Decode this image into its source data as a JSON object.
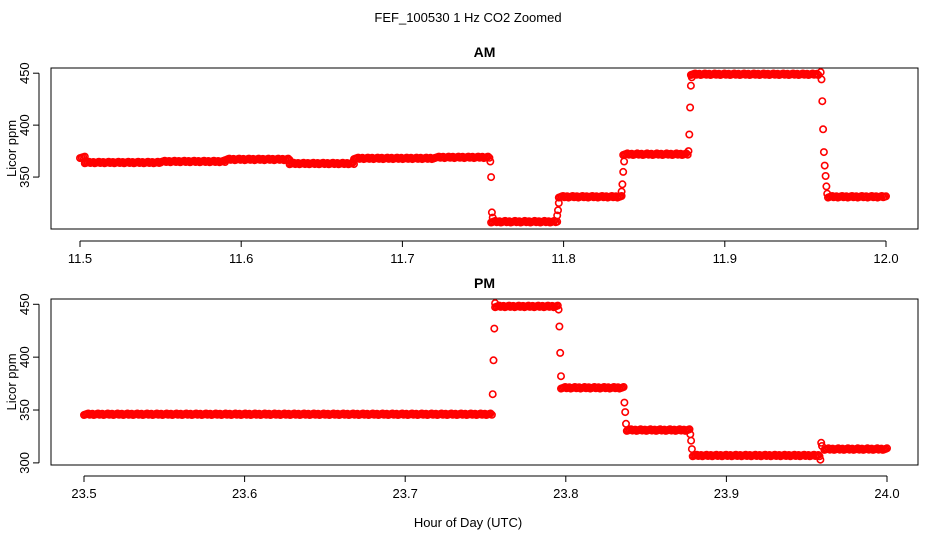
{
  "figure": {
    "title": "FEF_100530  1 Hz CO2 Zoomed",
    "xlabel": "Hour of Day (UTC)",
    "point_color": "#ff0000",
    "marker": "open-circle"
  },
  "chart_data": [
    {
      "type": "scatter",
      "title": "AM",
      "xlabel": "",
      "ylabel": "Licor ppm",
      "xlim": [
        11.5,
        12.0
      ],
      "ylim": [
        300,
        455
      ],
      "xticks": [
        11.5,
        11.6,
        11.7,
        11.8,
        11.9,
        12.0
      ],
      "xtick_labels": [
        "11.5",
        "11.6",
        "11.7",
        "11.8",
        "11.9",
        "12.0"
      ],
      "yticks": [
        350,
        400,
        450
      ],
      "ytick_labels": [
        "350",
        "400",
        "450"
      ],
      "grid": false,
      "segments": [
        {
          "x": [
            11.5,
            11.503
          ],
          "y": [
            369,
            369
          ]
        },
        {
          "x": [
            11.503,
            11.55
          ],
          "y": [
            364,
            364
          ]
        },
        {
          "x": [
            11.55,
            11.59
          ],
          "y": [
            365,
            365
          ]
        },
        {
          "x": [
            11.59,
            11.63
          ],
          "y": [
            367,
            367
          ]
        },
        {
          "x": [
            11.63,
            11.67
          ],
          "y": [
            363,
            363
          ]
        },
        {
          "x": [
            11.67,
            11.72
          ],
          "y": [
            368,
            368
          ]
        },
        {
          "x": [
            11.72,
            11.754
          ],
          "y": [
            369,
            369
          ]
        },
        {
          "x": [
            11.755,
            11.796
          ],
          "y": [
            307,
            307
          ]
        },
        {
          "x": [
            11.797,
            11.836
          ],
          "y": [
            331,
            331
          ]
        },
        {
          "x": [
            11.837,
            11.877
          ],
          "y": [
            372,
            372
          ]
        },
        {
          "x": [
            11.879,
            11.958
          ],
          "y": [
            449,
            449
          ]
        },
        {
          "x": [
            11.964,
            12.0
          ],
          "y": [
            331,
            331
          ]
        }
      ],
      "transitions": [
        {
          "x": 11.7545,
          "y": 365
        },
        {
          "x": 11.755,
          "y": 350
        },
        {
          "x": 11.7555,
          "y": 316
        },
        {
          "x": 11.756,
          "y": 311
        },
        {
          "x": 11.796,
          "y": 313
        },
        {
          "x": 11.7965,
          "y": 318
        },
        {
          "x": 11.797,
          "y": 325
        },
        {
          "x": 11.836,
          "y": 336
        },
        {
          "x": 11.8365,
          "y": 343
        },
        {
          "x": 11.837,
          "y": 355
        },
        {
          "x": 11.8375,
          "y": 365
        },
        {
          "x": 11.8775,
          "y": 375
        },
        {
          "x": 11.878,
          "y": 391
        },
        {
          "x": 11.8785,
          "y": 417
        },
        {
          "x": 11.879,
          "y": 438
        },
        {
          "x": 11.8795,
          "y": 446
        },
        {
          "x": 11.9595,
          "y": 451
        },
        {
          "x": 11.96,
          "y": 444
        },
        {
          "x": 11.9605,
          "y": 423
        },
        {
          "x": 11.961,
          "y": 396
        },
        {
          "x": 11.9615,
          "y": 374
        },
        {
          "x": 11.962,
          "y": 361
        },
        {
          "x": 11.9625,
          "y": 351
        },
        {
          "x": 11.963,
          "y": 341
        },
        {
          "x": 11.9635,
          "y": 334
        }
      ]
    },
    {
      "type": "scatter",
      "title": "PM",
      "xlabel": "Hour of Day (UTC)",
      "ylabel": "Licor ppm",
      "xlim": [
        23.5,
        24.0
      ],
      "ylim": [
        298,
        455
      ],
      "xticks": [
        23.5,
        23.6,
        23.7,
        23.8,
        23.9,
        24.0
      ],
      "xtick_labels": [
        "23.5",
        "23.6",
        "23.7",
        "23.8",
        "23.9",
        "24.0"
      ],
      "yticks": [
        300,
        350,
        400,
        450
      ],
      "ytick_labels": [
        "300",
        "350",
        "400",
        "450"
      ],
      "grid": false,
      "segments": [
        {
          "x": [
            23.5,
            23.754
          ],
          "y": [
            346,
            346
          ]
        },
        {
          "x": [
            23.756,
            23.795
          ],
          "y": [
            448,
            448
          ]
        },
        {
          "x": [
            23.797,
            23.836
          ],
          "y": [
            371,
            371
          ]
        },
        {
          "x": [
            23.838,
            23.877
          ],
          "y": [
            331,
            331
          ]
        },
        {
          "x": [
            23.879,
            23.958
          ],
          "y": [
            307,
            307
          ]
        },
        {
          "x": [
            23.961,
            24.0
          ],
          "y": [
            313,
            313
          ]
        }
      ],
      "transitions": [
        {
          "x": 23.7545,
          "y": 365
        },
        {
          "x": 23.755,
          "y": 397
        },
        {
          "x": 23.7555,
          "y": 427
        },
        {
          "x": 23.756,
          "y": 451
        },
        {
          "x": 23.7955,
          "y": 445
        },
        {
          "x": 23.796,
          "y": 429
        },
        {
          "x": 23.7965,
          "y": 404
        },
        {
          "x": 23.797,
          "y": 382
        },
        {
          "x": 23.8365,
          "y": 357
        },
        {
          "x": 23.837,
          "y": 348
        },
        {
          "x": 23.8375,
          "y": 337
        },
        {
          "x": 23.8775,
          "y": 327
        },
        {
          "x": 23.878,
          "y": 321
        },
        {
          "x": 23.8785,
          "y": 313
        },
        {
          "x": 23.9585,
          "y": 303
        },
        {
          "x": 23.959,
          "y": 319
        },
        {
          "x": 23.9595,
          "y": 316
        }
      ]
    }
  ]
}
